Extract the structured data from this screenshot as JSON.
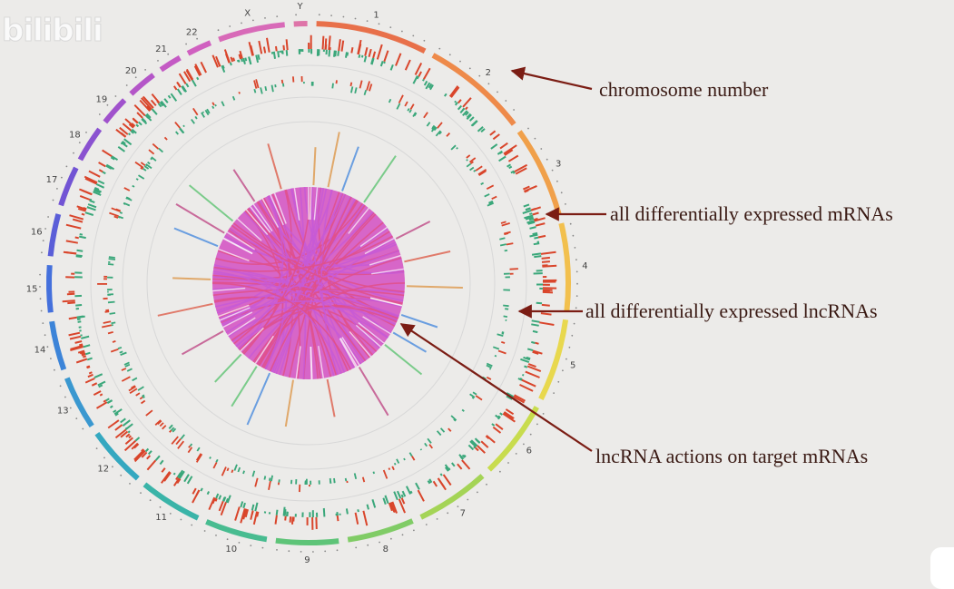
{
  "watermark": "bilibili",
  "labels": {
    "chromosome": "chromosome number",
    "mrna": "all differentially expressed mRNAs",
    "lncrna": "all differentially expressed lncRNAs",
    "actions": "lncRNA actions on target mRNAs"
  },
  "chromosomes": [
    "1",
    "2",
    "3",
    "4",
    "5",
    "6",
    "7",
    "8",
    "9",
    "10",
    "11",
    "12",
    "13",
    "14",
    "15",
    "16",
    "17",
    "18",
    "19",
    "20",
    "21",
    "22",
    "X",
    "Y"
  ],
  "colors": {
    "arrow": "#7b1d14",
    "mrna_up": "#d9452b",
    "mrna_down": "#3aa77a",
    "chord_main": "#c75ad6",
    "chord_alt": "#e0508a"
  }
}
